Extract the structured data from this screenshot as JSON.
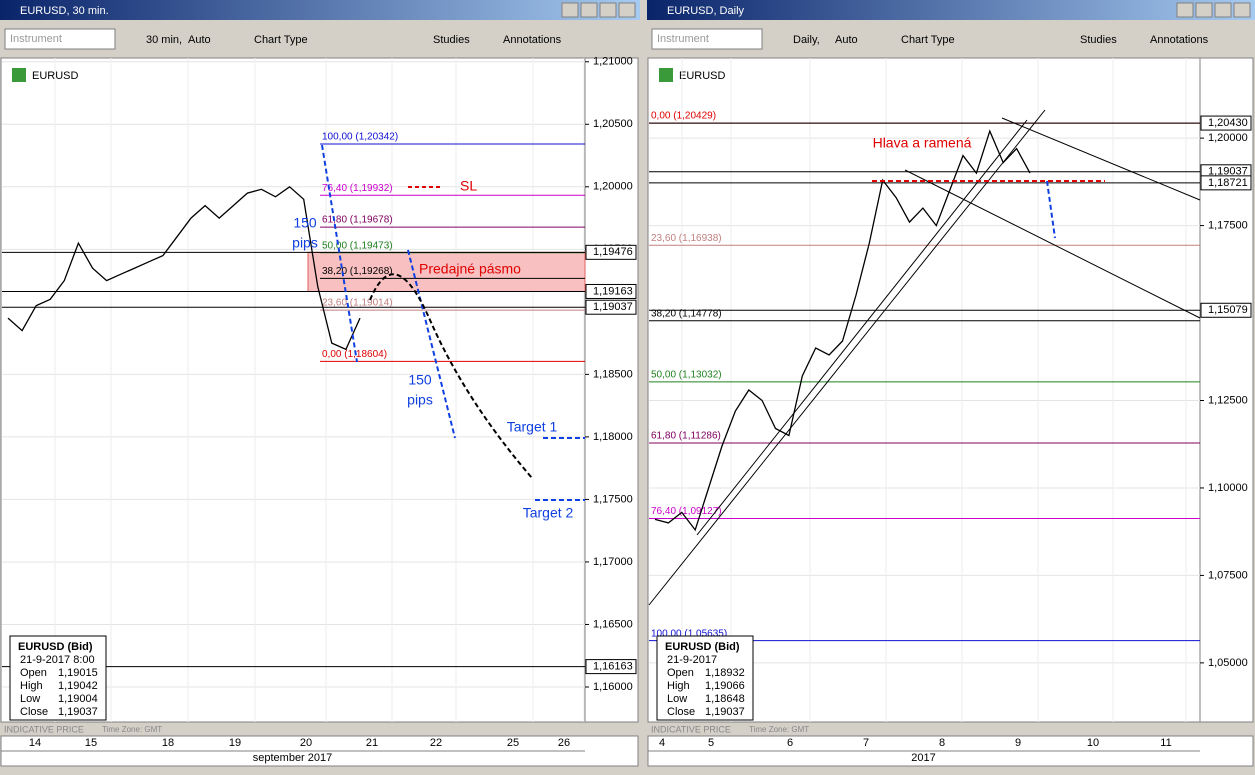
{
  "panels": [
    {
      "title": "EURUSD, 30 min.",
      "toolbar": {
        "instrument": "Instrument",
        "interval": "30 min,",
        "scale": "Auto",
        "chart_type": "Chart Type",
        "studies": "Studies",
        "annotations": "Annotations"
      },
      "symbol": "EURUSD",
      "ylim": [
        1.1572,
        1.2103
      ],
      "yticks": [
        {
          "value": 1.21,
          "label": "1,21000"
        },
        {
          "value": 1.205,
          "label": "1,20500"
        },
        {
          "value": 1.2,
          "label": "1,20000"
        },
        {
          "value": 1.195,
          "label": "1,19500"
        },
        {
          "value": 1.185,
          "label": "1,18500"
        },
        {
          "value": 1.18,
          "label": "1,18000"
        },
        {
          "value": 1.175,
          "label": "1,17500"
        },
        {
          "value": 1.17,
          "label": "1,17000"
        },
        {
          "value": 1.165,
          "label": "1,16500"
        },
        {
          "value": 1.16,
          "label": "1,16000"
        }
      ],
      "price_tags": [
        {
          "value": 1.19476,
          "label": "1,19476"
        },
        {
          "value": 1.19163,
          "label": "1,19163"
        },
        {
          "value": 1.19037,
          "label": "1,19037"
        },
        {
          "value": 1.16163,
          "label": "1,16163"
        }
      ],
      "fib_levels": [
        {
          "label": "100,00 (1,20342)",
          "value": 1.20342,
          "color": "#1010d0"
        },
        {
          "label": "76,40 (1,19932)",
          "value": 1.19932,
          "color": "#cc00cc"
        },
        {
          "label": "61,80 (1,19678)",
          "value": 1.19678,
          "color": "#800060"
        },
        {
          "label": "50,00 (1,19473)",
          "value": 1.19473,
          "color": "#208020"
        },
        {
          "label": "38,20 (1,19268)",
          "value": 1.19268,
          "color": "#000000"
        },
        {
          "label": "23,60 (1,19014)",
          "value": 1.19014,
          "color": "#c08080"
        },
        {
          "label": "0,00 (1,18604)",
          "value": 1.18604,
          "color": "#e00000"
        }
      ],
      "price_path": [
        1.1895,
        1.1885,
        1.1905,
        1.191,
        1.1925,
        1.1955,
        1.1935,
        1.1925,
        1.193,
        1.1935,
        1.194,
        1.1945,
        1.196,
        1.1975,
        1.1985,
        1.1975,
        1.1985,
        1.1995,
        1.1998,
        1.1992,
        1.2,
        1.199,
        1.192,
        1.1875,
        1.187,
        1.1895
      ],
      "annotations": [
        "SL",
        "150",
        "pips",
        "Predajné pásmo",
        "150",
        "pips",
        "Target 1",
        "Target 2"
      ],
      "info_box": {
        "title": "EURUSD (Bid)",
        "date": "21-9-2017 8:00",
        "rows": [
          {
            "name": "Open",
            "value": "1,19015"
          },
          {
            "name": "High",
            "value": "1,19042"
          },
          {
            "name": "Low",
            "value": "1,19004"
          },
          {
            "name": "Close",
            "value": "1,19037"
          }
        ]
      },
      "footer": "INDICATIVE PRICE",
      "timezone": "Time Zone: GMT",
      "time_labels": [
        "14",
        "15",
        "18",
        "19",
        "20",
        "21",
        "22",
        "25",
        "26"
      ],
      "time_caption": "september 2017"
    },
    {
      "title": "EURUSD, Daily",
      "toolbar": {
        "instrument": "Instrument",
        "interval": "Daily,",
        "scale": "Auto",
        "chart_type": "Chart Type",
        "studies": "Studies",
        "annotations": "Annotations"
      },
      "symbol": "EURUSD",
      "ylim": [
        1.0331,
        1.2229
      ],
      "yticks": [
        {
          "value": 1.2,
          "label": "1,20000"
        },
        {
          "value": 1.175,
          "label": "1,17500"
        },
        {
          "value": 1.125,
          "label": "1,12500"
        },
        {
          "value": 1.1,
          "label": "1,10000"
        },
        {
          "value": 1.075,
          "label": "1,07500"
        },
        {
          "value": 1.05,
          "label": "1,05000"
        }
      ],
      "price_tags": [
        {
          "value": 1.2043,
          "label": "1,20430"
        },
        {
          "value": 1.19037,
          "label": "1,19037"
        },
        {
          "value": 1.18721,
          "label": "1,18721"
        },
        {
          "value": 1.15079,
          "label": "1,15079"
        }
      ],
      "fib_levels": [
        {
          "label": "0,00 (1,20429)",
          "value": 1.20429,
          "color": "#e00000"
        },
        {
          "label": "23,60 (1,16938)",
          "value": 1.16938,
          "color": "#c08080"
        },
        {
          "label": "38,20 (1,14778)",
          "value": 1.14778,
          "color": "#000000"
        },
        {
          "label": "50,00 (1,13032)",
          "value": 1.13032,
          "color": "#208020"
        },
        {
          "label": "61,80 (1,11286)",
          "value": 1.11286,
          "color": "#800060"
        },
        {
          "label": "76,40 (1,09127)",
          "value": 1.09127,
          "color": "#cc00cc"
        },
        {
          "label": "100,00 (1,05635)",
          "value": 1.05635,
          "color": "#1010d0"
        }
      ],
      "price_path": [
        1.091,
        1.09,
        1.093,
        1.088,
        1.1,
        1.112,
        1.122,
        1.128,
        1.125,
        1.117,
        1.115,
        1.132,
        1.14,
        1.138,
        1.142,
        1.155,
        1.17,
        1.188,
        1.183,
        1.176,
        1.18,
        1.175,
        1.185,
        1.195,
        1.19,
        1.202,
        1.193,
        1.197,
        1.19
      ],
      "annotations": [
        "Hlava a ramená"
      ],
      "info_box": {
        "title": "EURUSD (Bid)",
        "date": "21-9-2017",
        "rows": [
          {
            "name": "Open",
            "value": "1,18932"
          },
          {
            "name": "High",
            "value": "1,19066"
          },
          {
            "name": "Low",
            "value": "1,18648"
          },
          {
            "name": "Close",
            "value": "1,19037"
          }
        ]
      },
      "footer": "INDICATIVE PRICE",
      "timezone": "Time Zone: GMT",
      "time_labels": [
        "4",
        "5",
        "6",
        "7",
        "8",
        "9",
        "10",
        "11"
      ],
      "time_caption": "2017"
    }
  ]
}
